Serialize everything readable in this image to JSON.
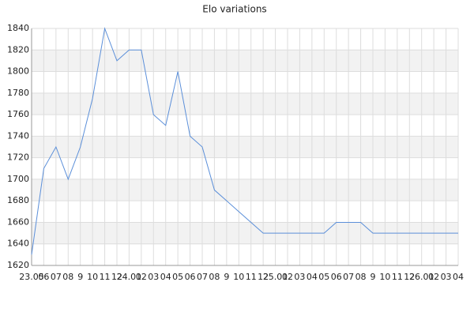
{
  "chart_data": {
    "type": "line",
    "title": "Elo variations",
    "categories": [
      "23.05",
      "06",
      "07",
      "08",
      "9",
      "10",
      "11",
      "12",
      "24.01",
      "02",
      "03",
      "04",
      "05",
      "06",
      "07",
      "08",
      "9",
      "10",
      "11",
      "12",
      "25.01",
      "02",
      "03",
      "04",
      "05",
      "06",
      "07",
      "08",
      "9",
      "10",
      "11",
      "12",
      "26.01",
      "02",
      "03",
      "04"
    ],
    "series": [
      {
        "name": "Elo",
        "color": "#5b8fd9",
        "values": [
          1630,
          1710,
          1730,
          1700,
          1730,
          1775,
          1840,
          1810,
          1820,
          1820,
          1760,
          1750,
          1800,
          1740,
          1730,
          1690,
          1680,
          1670,
          1660,
          1650,
          1650,
          1650,
          1650,
          1650,
          1650,
          1660,
          1660,
          1660,
          1650,
          1650,
          1650,
          1650,
          1650,
          1650,
          1650,
          1650
        ]
      }
    ],
    "ylim": [
      1620,
      1840
    ],
    "yticks": [
      1620,
      1640,
      1660,
      1680,
      1700,
      1720,
      1740,
      1760,
      1780,
      1800,
      1820,
      1840
    ],
    "grid": true,
    "band_color": "#f2f2f2"
  }
}
